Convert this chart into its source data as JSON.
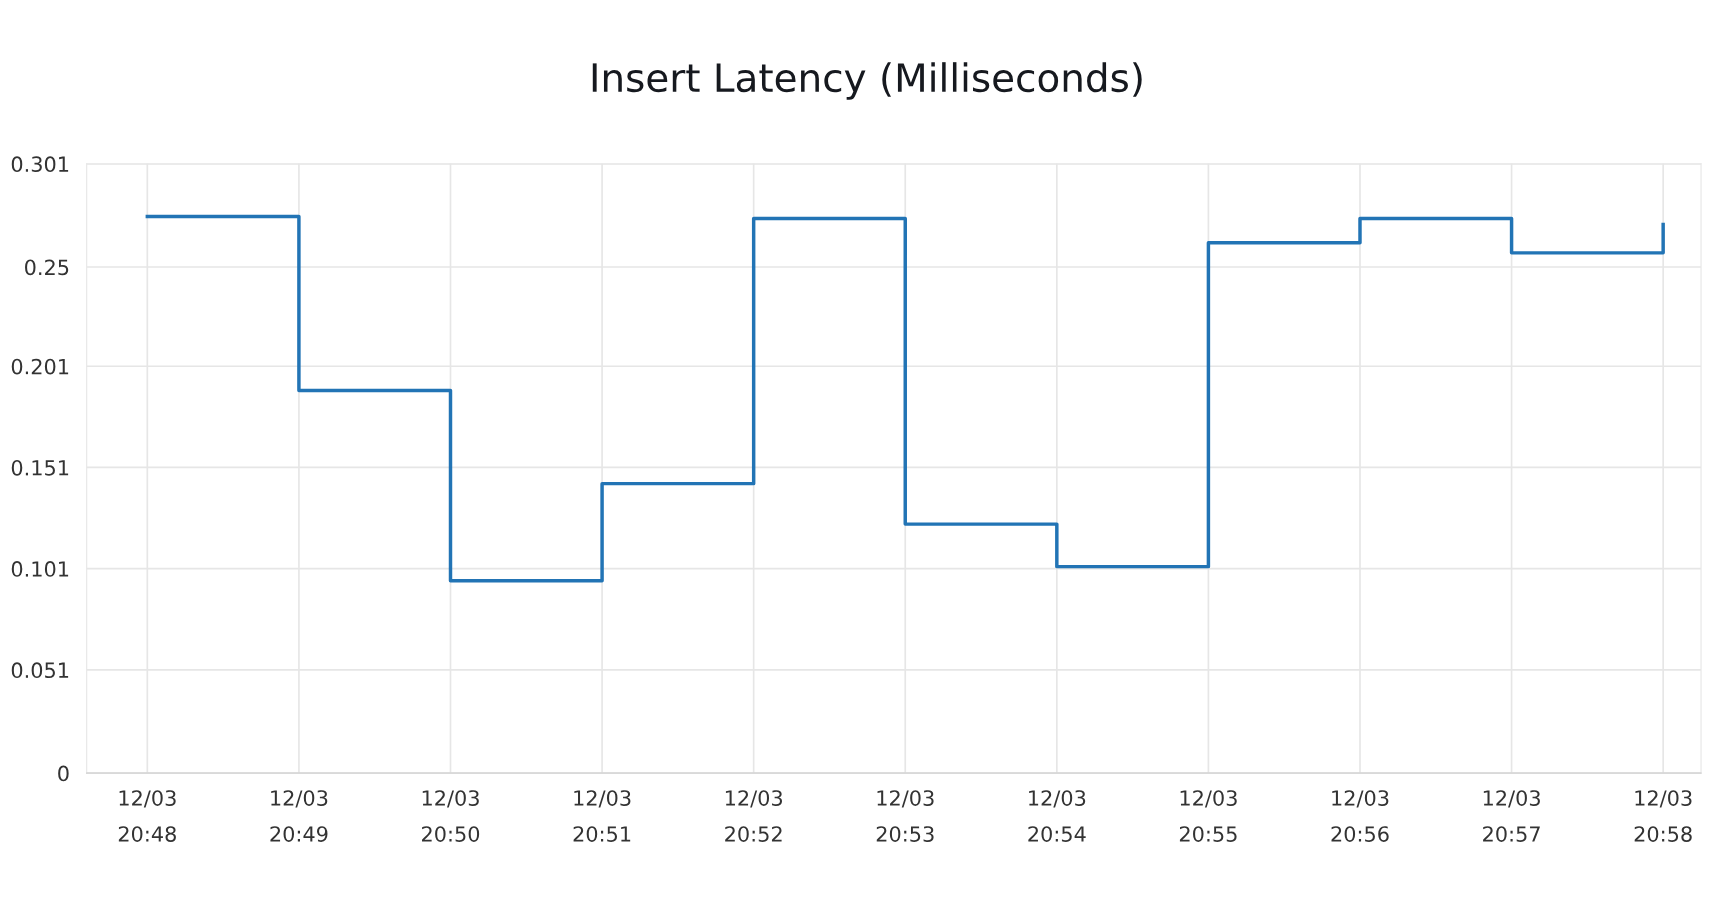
{
  "chart_data": {
    "type": "step",
    "title": "Insert Latency (Milliseconds)",
    "categories": [
      "12/03\n20:48",
      "12/03\n20:49",
      "12/03\n20:50",
      "12/03\n20:51",
      "12/03\n20:52",
      "12/03\n20:53",
      "12/03\n20:54",
      "12/03\n20:55",
      "12/03\n20:56",
      "12/03\n20:57",
      "12/03\n20:58"
    ],
    "series": [
      {
        "color": "#2274b5",
        "values": [
          0.275,
          0.189,
          0.095,
          0.143,
          0.274,
          0.123,
          0.102,
          0.262,
          0.274,
          0.257,
          0.271
        ]
      }
    ],
    "ylim": [
      0,
      0.301
    ],
    "yticks": [
      0,
      0.051,
      0.101,
      0.151,
      0.201,
      0.25,
      0.301
    ],
    "grid": true
  }
}
